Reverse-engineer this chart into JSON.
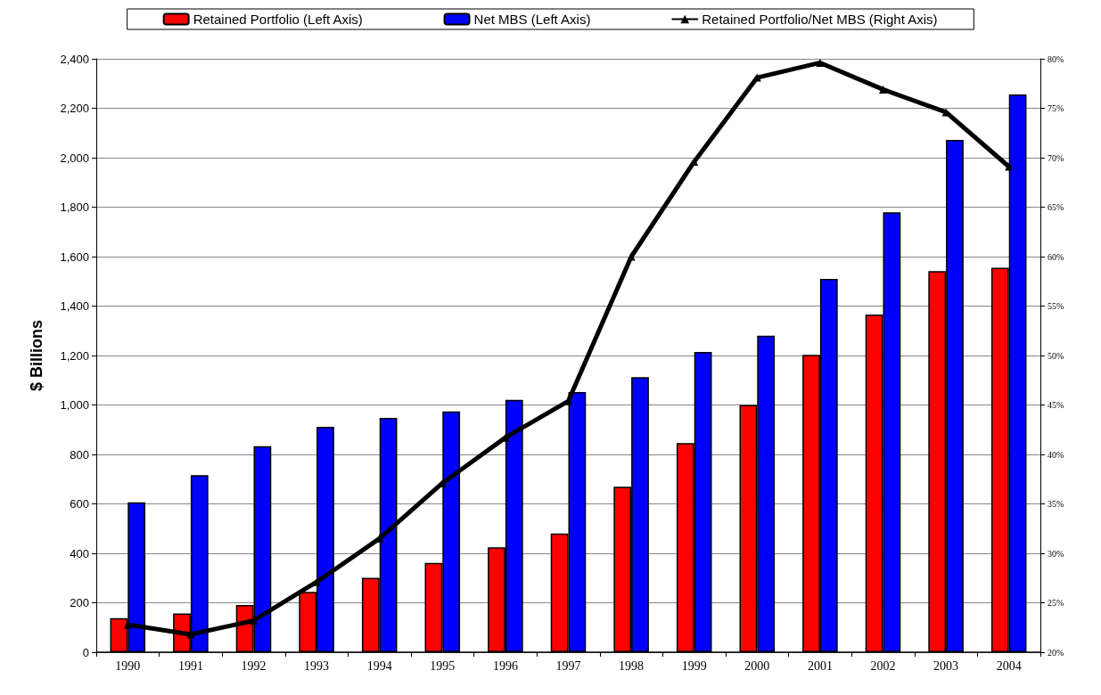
{
  "chart_data": {
    "type": "bar",
    "ylabel": "$ Billions",
    "categories": [
      "1990",
      "1991",
      "1992",
      "1993",
      "1994",
      "1995",
      "1996",
      "1997",
      "1998",
      "1999",
      "2000",
      "2001",
      "2002",
      "2003",
      "2004"
    ],
    "series": [
      {
        "name": "Retained Portfolio (Left Axis)",
        "color": "#ff0000",
        "values": [
          138,
          157,
          191,
          244,
          301,
          361,
          424,
          480,
          669,
          846,
          1000,
          1203,
          1366,
          1541,
          1555
        ]
      },
      {
        "name": "Net MBS (Left Axis)",
        "color": "#0000ff",
        "values": [
          606,
          716,
          833,
          912,
          948,
          974,
          1021,
          1052,
          1113,
          1214,
          1280,
          1510,
          1779,
          2072,
          2256
        ]
      },
      {
        "name": "Retained Portfolio/Net MBS (Right Axis)",
        "type": "line",
        "axis": "y2",
        "color": "#000000",
        "marker": "triangle",
        "values": [
          22.8,
          21.8,
          23.2,
          27.1,
          31.5,
          37.1,
          41.7,
          45.4,
          60.0,
          69.6,
          78.1,
          79.6,
          76.9,
          74.6,
          69.1
        ]
      }
    ],
    "ylim": [
      0,
      2400
    ],
    "yticks": [
      0,
      200,
      400,
      600,
      800,
      {
        "value": 1000,
        "label": "1,000"
      },
      {
        "value": 1200,
        "label": "1,200"
      },
      {
        "value": 1400,
        "label": "1,400"
      },
      {
        "value": 1600,
        "label": "1,600"
      },
      {
        "value": 1800,
        "label": "1,800"
      },
      {
        "value": 2000,
        "label": "2,000"
      },
      {
        "value": 2200,
        "label": "2,200"
      },
      {
        "value": 2400,
        "label": "2,400"
      }
    ],
    "y2lim": [
      20,
      80
    ],
    "y2ticks": [
      {
        "value": 20,
        "label": "20%"
      },
      {
        "value": 25,
        "label": "25%"
      },
      {
        "value": 30,
        "label": "30%"
      },
      {
        "value": 35,
        "label": "35%"
      },
      {
        "value": 40,
        "label": "40%"
      },
      {
        "value": 45,
        "label": "45%"
      },
      {
        "value": 50,
        "label": "50%"
      },
      {
        "value": 55,
        "label": "55%"
      },
      {
        "value": 60,
        "label": "60%"
      },
      {
        "value": 65,
        "label": "65%"
      },
      {
        "value": 70,
        "label": "70%"
      },
      {
        "value": 75,
        "label": "75%"
      },
      {
        "value": 80,
        "label": "80%"
      }
    ],
    "grid": "y",
    "legend": "top"
  }
}
